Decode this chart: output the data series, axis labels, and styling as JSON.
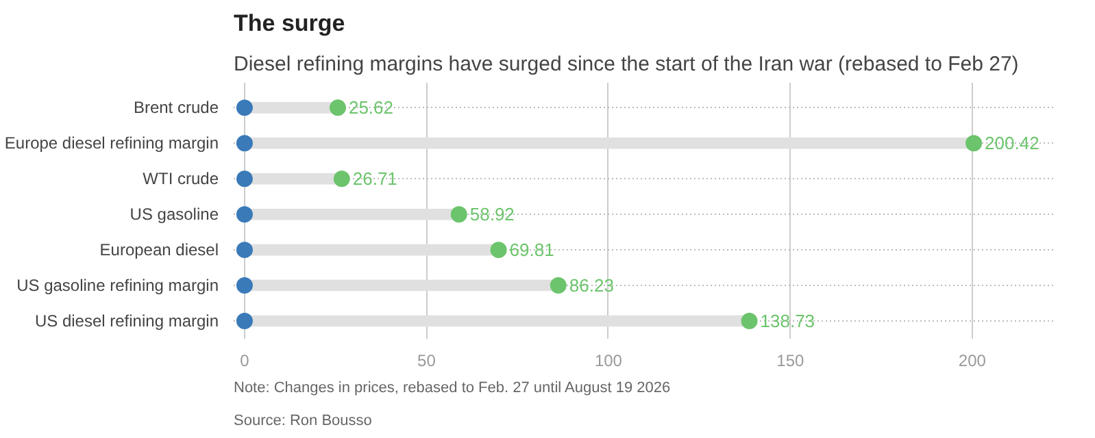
{
  "chart_data": {
    "type": "bar",
    "orientation": "horizontal",
    "title": "The surge",
    "subtitle": "Diesel refining margins have surged since the start of the Iran war (rebased to Feb 27)",
    "categories": [
      "Brent crude",
      "Europe diesel refining margin",
      "WTI crude",
      "US gasoline",
      "European diesel",
      "US gasoline refining margin",
      "US diesel refining margin"
    ],
    "series": [
      {
        "color": "#e0e0e0",
        "values": [
          25.62,
          200.42,
          26.71,
          58.92,
          69.81,
          86.23,
          138.73
        ]
      },
      {
        "type": "scatter",
        "color": "#3a7ab8",
        "values": [
          0,
          0,
          0,
          0,
          0,
          0,
          0
        ]
      },
      {
        "type": "scatter",
        "color": "#6cc46c",
        "values": [
          25.62,
          200.42,
          26.71,
          58.92,
          69.81,
          86.23,
          138.73
        ],
        "value_labels": [
          "25.62",
          "200.42",
          "26.71",
          "58.92",
          "69.81",
          "86.23",
          "138.73"
        ]
      }
    ],
    "xlim": [
      -3,
      223
    ],
    "xticks": [
      0,
      50,
      100,
      150,
      200
    ],
    "grid": true,
    "marker": "circle",
    "annotations": [
      "Note: Changes in prices, rebased to Feb. 27 until August 19 2026",
      "Source: Ron Bousso"
    ]
  }
}
